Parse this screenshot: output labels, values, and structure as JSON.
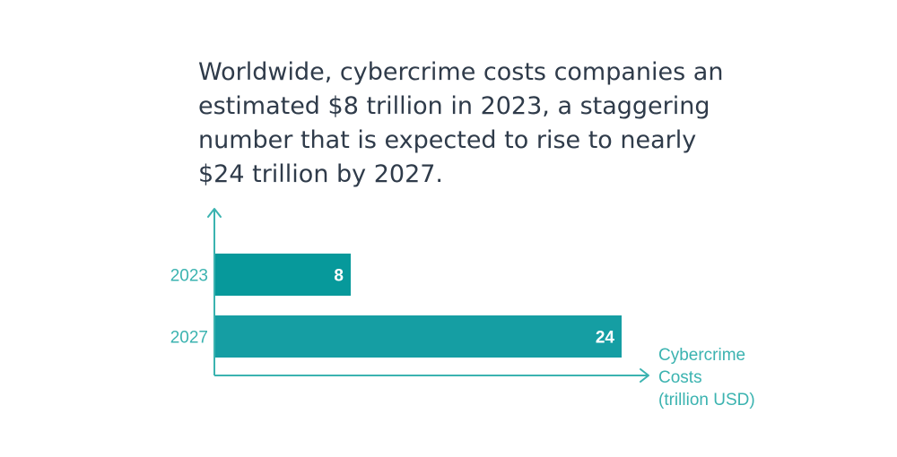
{
  "headline": {
    "lines": [
      "Worldwide, cybercrime costs companies an",
      "estimated $8 trillion in 2023, a staggering",
      "number that is expected to rise to nearly",
      "$24 trillion by 2027."
    ]
  },
  "colors": {
    "bar_2023": "#07999b",
    "bar_2027": "#159ea3",
    "axis": "#3bb3b0",
    "text": "#2f3b4a"
  },
  "chart_data": {
    "type": "bar",
    "orientation": "horizontal",
    "categories": [
      "2023",
      "2027"
    ],
    "values": [
      8,
      24
    ],
    "data_labels": [
      "8",
      "24"
    ],
    "title": "",
    "xlabel": "",
    "ylabel": "",
    "x_axis_label_lines": [
      "Cybercrime",
      "Costs",
      "(trillion USD)"
    ],
    "xlim": [
      0,
      28
    ],
    "grid": false,
    "legend": "none"
  }
}
